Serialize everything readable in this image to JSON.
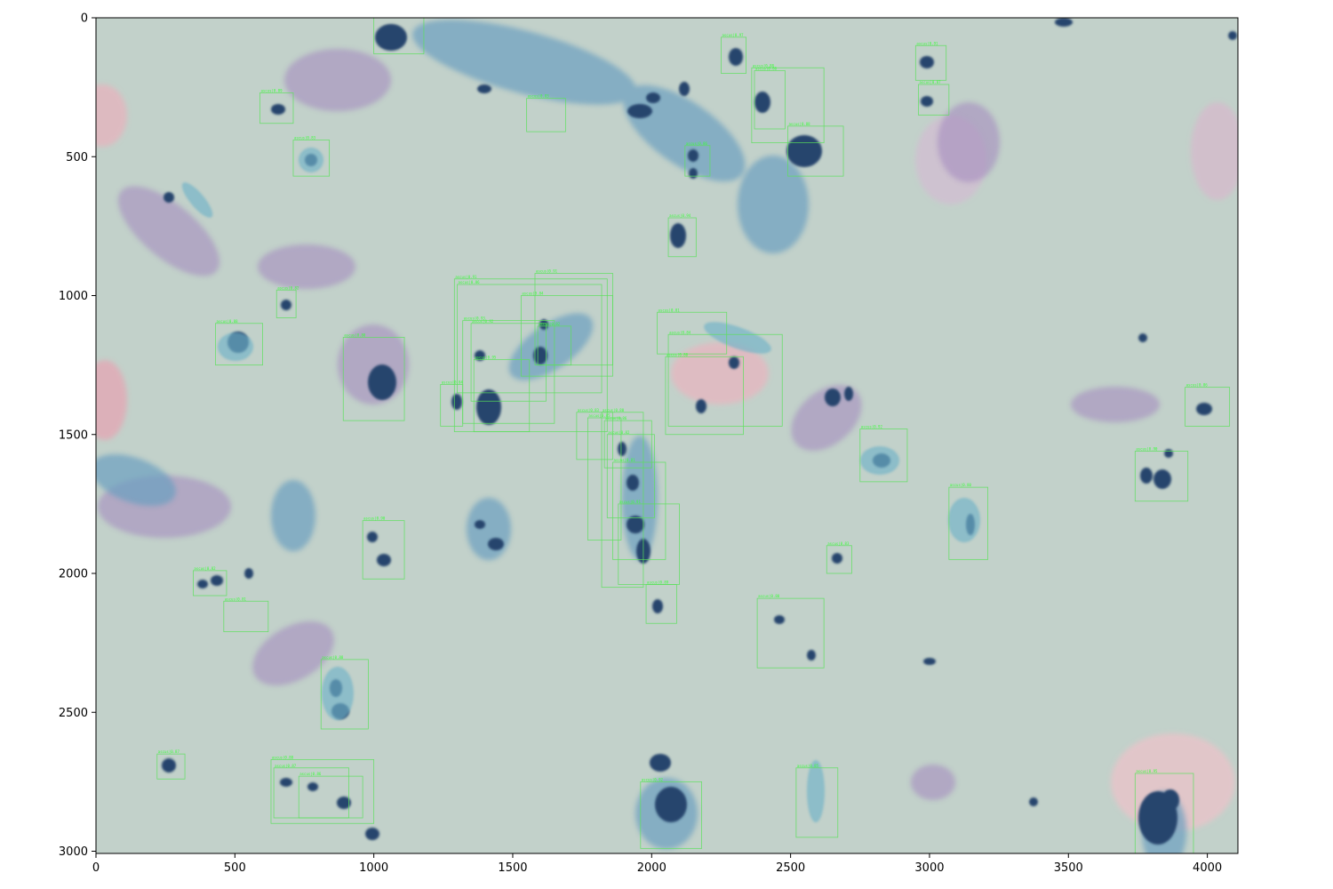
{
  "axes": {
    "x_range": [
      0,
      4110
    ],
    "y_range": [
      0,
      3008
    ],
    "y_inverted": true,
    "x_ticks": [
      {
        "value": 0,
        "label": "0"
      },
      {
        "value": 500,
        "label": "500"
      },
      {
        "value": 1000,
        "label": "1000"
      },
      {
        "value": 1500,
        "label": "1500"
      },
      {
        "value": 2000,
        "label": "2000"
      },
      {
        "value": 2500,
        "label": "2500"
      },
      {
        "value": 3000,
        "label": "3000"
      },
      {
        "value": 3500,
        "label": "3500"
      },
      {
        "value": 4000,
        "label": "4000"
      }
    ],
    "y_ticks": [
      {
        "value": 0,
        "label": "0"
      },
      {
        "value": 500,
        "label": "500"
      },
      {
        "value": 1000,
        "label": "1000"
      },
      {
        "value": 1500,
        "label": "1500"
      },
      {
        "value": 2000,
        "label": "2000"
      },
      {
        "value": 2500,
        "label": "2500"
      },
      {
        "value": 3000,
        "label": "3000"
      }
    ]
  },
  "image": {
    "description_type": "cytology micrograph with detection boxes",
    "background_color": "#c2d1ca",
    "box_color": "#5be05b",
    "box_label_color": "#39ff39"
  },
  "detections": [
    {
      "x0": 1000,
      "y0": 0,
      "x1": 1180,
      "y1": 130,
      "label": "ascus"
    },
    {
      "x0": 2250,
      "y0": 70,
      "x1": 2340,
      "y1": 200,
      "label": "ascus|0.97"
    },
    {
      "x0": 2950,
      "y0": 100,
      "x1": 3060,
      "y1": 225,
      "label": "ascus|0.91"
    },
    {
      "x0": 2960,
      "y0": 240,
      "x1": 3070,
      "y1": 350,
      "label": "ascus|0.87"
    },
    {
      "x0": 2360,
      "y0": 180,
      "x1": 2620,
      "y1": 450,
      "label": "ascus|0.88"
    },
    {
      "x0": 2370,
      "y0": 190,
      "x1": 2480,
      "y1": 400,
      "label": "ascus|0.86"
    },
    {
      "x0": 2490,
      "y0": 390,
      "x1": 2690,
      "y1": 570,
      "label": "ascus|0.88"
    },
    {
      "x0": 1550,
      "y0": 290,
      "x1": 1690,
      "y1": 410,
      "label": "ascus|0.83"
    },
    {
      "x0": 590,
      "y0": 270,
      "x1": 710,
      "y1": 380,
      "label": "ascus|0.89"
    },
    {
      "x0": 710,
      "y0": 440,
      "x1": 840,
      "y1": 570,
      "label": "ascus|0.83"
    },
    {
      "x0": 2120,
      "y0": 460,
      "x1": 2210,
      "y1": 570,
      "label": "ascus|0.86"
    },
    {
      "x0": 2060,
      "y0": 720,
      "x1": 2160,
      "y1": 860,
      "label": "ascus|0.94"
    },
    {
      "x0": 650,
      "y0": 980,
      "x1": 720,
      "y1": 1080,
      "label": "ascus|0.82"
    },
    {
      "x0": 430,
      "y0": 1100,
      "x1": 600,
      "y1": 1250,
      "label": "ascus|0.88"
    },
    {
      "x0": 890,
      "y0": 1150,
      "x1": 1110,
      "y1": 1450,
      "label": "ascus|0.80"
    },
    {
      "x0": 1290,
      "y0": 940,
      "x1": 1840,
      "y1": 1490,
      "label": "ascus|0.91"
    },
    {
      "x0": 1300,
      "y0": 960,
      "x1": 1820,
      "y1": 1350,
      "label": "ascus|0.86"
    },
    {
      "x0": 1320,
      "y0": 1090,
      "x1": 1650,
      "y1": 1460,
      "label": "ascus|0.93"
    },
    {
      "x0": 1350,
      "y0": 1100,
      "x1": 1620,
      "y1": 1380,
      "label": "ascus|0.92"
    },
    {
      "x0": 1360,
      "y0": 1230,
      "x1": 1560,
      "y1": 1490,
      "label": "ascus|0.95"
    },
    {
      "x0": 1530,
      "y0": 1000,
      "x1": 1860,
      "y1": 1290,
      "label": "ascus|0.84"
    },
    {
      "x0": 1580,
      "y0": 920,
      "x1": 1860,
      "y1": 1250,
      "label": "ascus|0.91"
    },
    {
      "x0": 1590,
      "y0": 1110,
      "x1": 1710,
      "y1": 1250,
      "label": "ascus|0.82"
    },
    {
      "x0": 1240,
      "y0": 1320,
      "x1": 1320,
      "y1": 1470,
      "label": "ascus|0.84"
    },
    {
      "x0": 2020,
      "y0": 1060,
      "x1": 2270,
      "y1": 1210,
      "label": "ascus|0.81"
    },
    {
      "x0": 2060,
      "y0": 1140,
      "x1": 2470,
      "y1": 1470,
      "label": "ascus|0.84"
    },
    {
      "x0": 2050,
      "y0": 1220,
      "x1": 2330,
      "y1": 1500,
      "label": "ascus|0.80"
    },
    {
      "x0": 1730,
      "y0": 1420,
      "x1": 1860,
      "y1": 1590,
      "label": "ascus|0.83"
    },
    {
      "x0": 1770,
      "y0": 1440,
      "x1": 1890,
      "y1": 1880,
      "label": "ascus|0.85"
    },
    {
      "x0": 1820,
      "y0": 1420,
      "x1": 1970,
      "y1": 2050,
      "label": "ascus|0.80"
    },
    {
      "x0": 1830,
      "y0": 1450,
      "x1": 2000,
      "y1": 1620,
      "label": "ascus|0.86"
    },
    {
      "x0": 1840,
      "y0": 1500,
      "x1": 2010,
      "y1": 1800,
      "label": "ascus|0.82"
    },
    {
      "x0": 1880,
      "y0": 1750,
      "x1": 2100,
      "y1": 2040,
      "label": "ascus|0.91"
    },
    {
      "x0": 1860,
      "y0": 1600,
      "x1": 2050,
      "y1": 1950,
      "label": "ascus|0.81"
    },
    {
      "x0": 2750,
      "y0": 1480,
      "x1": 2920,
      "y1": 1670,
      "label": "ascus|0.92"
    },
    {
      "x0": 3740,
      "y0": 1560,
      "x1": 3930,
      "y1": 1740,
      "label": "ascus|0.90"
    },
    {
      "x0": 3920,
      "y0": 1330,
      "x1": 4080,
      "y1": 1470,
      "label": "ascus|0.86"
    },
    {
      "x0": 3070,
      "y0": 1690,
      "x1": 3210,
      "y1": 1950,
      "label": "ascus|0.80"
    },
    {
      "x0": 2630,
      "y0": 1900,
      "x1": 2720,
      "y1": 2000,
      "label": "ascus|0.83"
    },
    {
      "x0": 960,
      "y0": 1810,
      "x1": 1110,
      "y1": 2020,
      "label": "ascus|0.90"
    },
    {
      "x0": 350,
      "y0": 1990,
      "x1": 470,
      "y1": 2080,
      "label": "ascus|0.82"
    },
    {
      "x0": 460,
      "y0": 2100,
      "x1": 620,
      "y1": 2210,
      "label": "ascus|0.81"
    },
    {
      "x0": 1980,
      "y0": 2040,
      "x1": 2090,
      "y1": 2180,
      "label": "ascus|0.89"
    },
    {
      "x0": 2380,
      "y0": 2090,
      "x1": 2620,
      "y1": 2340,
      "label": "ascus|0.80"
    },
    {
      "x0": 810,
      "y0": 2310,
      "x1": 980,
      "y1": 2560,
      "label": "ascus|0.88"
    },
    {
      "x0": 220,
      "y0": 2650,
      "x1": 320,
      "y1": 2740,
      "label": "ascus|0.87"
    },
    {
      "x0": 630,
      "y0": 2670,
      "x1": 1000,
      "y1": 2900,
      "label": "ascus|0.88"
    },
    {
      "x0": 640,
      "y0": 2700,
      "x1": 910,
      "y1": 2880,
      "label": "ascus|0.87"
    },
    {
      "x0": 730,
      "y0": 2730,
      "x1": 960,
      "y1": 2880,
      "label": "ascus|0.86"
    },
    {
      "x0": 1960,
      "y0": 2750,
      "x1": 2180,
      "y1": 2990,
      "label": "ascus|0.92"
    },
    {
      "x0": 2520,
      "y0": 2700,
      "x1": 2670,
      "y1": 2950,
      "label": "ascus|0.85"
    },
    {
      "x0": 3740,
      "y0": 2720,
      "x1": 3950,
      "y1": 3008,
      "label": "ascus|0.95"
    }
  ]
}
